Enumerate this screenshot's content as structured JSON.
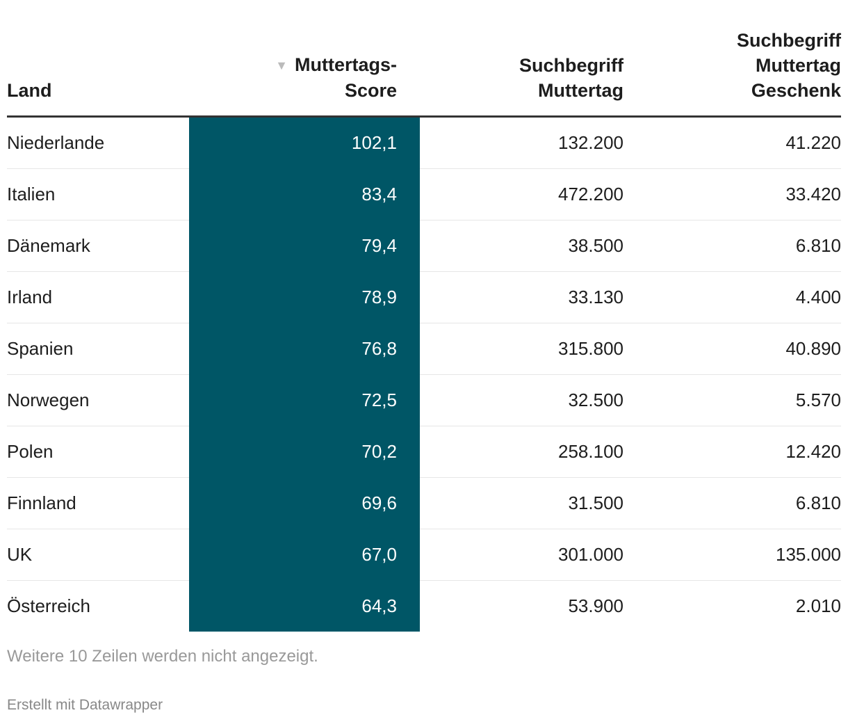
{
  "table": {
    "headers": {
      "land": "Land",
      "score_line1": "Muttertags-",
      "score_line2": "Score",
      "suche_line1": "Suchbegriff",
      "suche_line2": "Muttertag",
      "geschenk_line1": "Suchbegriff",
      "geschenk_line2": "Muttertag",
      "geschenk_line3": "Geschenk"
    },
    "sort_icon": "triangle-down",
    "score_color": "#005666",
    "rows": [
      {
        "land": "Niederlande",
        "score": "102,1",
        "suche": "132.200",
        "geschenk": "41.220"
      },
      {
        "land": "Italien",
        "score": "83,4",
        "suche": "472.200",
        "geschenk": "33.420"
      },
      {
        "land": "Dänemark",
        "score": "79,4",
        "suche": "38.500",
        "geschenk": "6.810"
      },
      {
        "land": "Irland",
        "score": "78,9",
        "suche": "33.130",
        "geschenk": "4.400"
      },
      {
        "land": "Spanien",
        "score": "76,8",
        "suche": "315.800",
        "geschenk": "40.890"
      },
      {
        "land": "Norwegen",
        "score": "72,5",
        "suche": "32.500",
        "geschenk": "5.570"
      },
      {
        "land": "Polen",
        "score": "70,2",
        "suche": "258.100",
        "geschenk": "12.420"
      },
      {
        "land": "Finnland",
        "score": "69,6",
        "suche": "31.500",
        "geschenk": "6.810"
      },
      {
        "land": "UK",
        "score": "67,0",
        "suche": "301.000",
        "geschenk": "135.000"
      },
      {
        "land": "Österreich",
        "score": "64,3",
        "suche": "53.900",
        "geschenk": "2.010"
      }
    ]
  },
  "footer": {
    "hidden_rows_note": "Weitere 10 Zeilen werden nicht angezeigt.",
    "credit": "Erstellt mit Datawrapper"
  }
}
